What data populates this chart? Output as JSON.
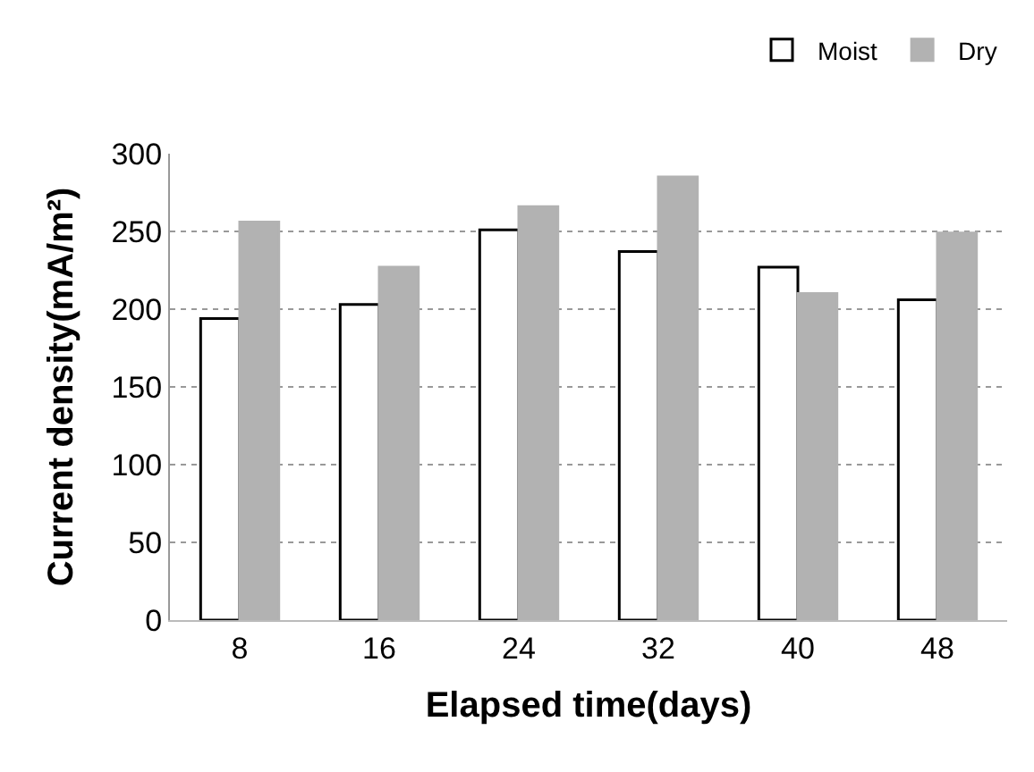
{
  "chart_data": {
    "type": "bar",
    "xlabel": "Elapsed time(days)",
    "ylabel": "Current density(mA/m²)",
    "categories": [
      "8",
      "16",
      "24",
      "32",
      "40",
      "48"
    ],
    "series": [
      {
        "name": "Moist",
        "color": "#ffffff",
        "values": [
          194,
          203,
          251,
          237,
          227,
          206
        ]
      },
      {
        "name": "Dry",
        "color": "#b2b2b2",
        "values": [
          256,
          227,
          266,
          285,
          210,
          249
        ]
      }
    ],
    "ylim": [
      0,
      300
    ],
    "yticks": [
      0,
      50,
      100,
      150,
      200,
      250,
      300
    ],
    "grid": "y",
    "legend": "top right"
  }
}
